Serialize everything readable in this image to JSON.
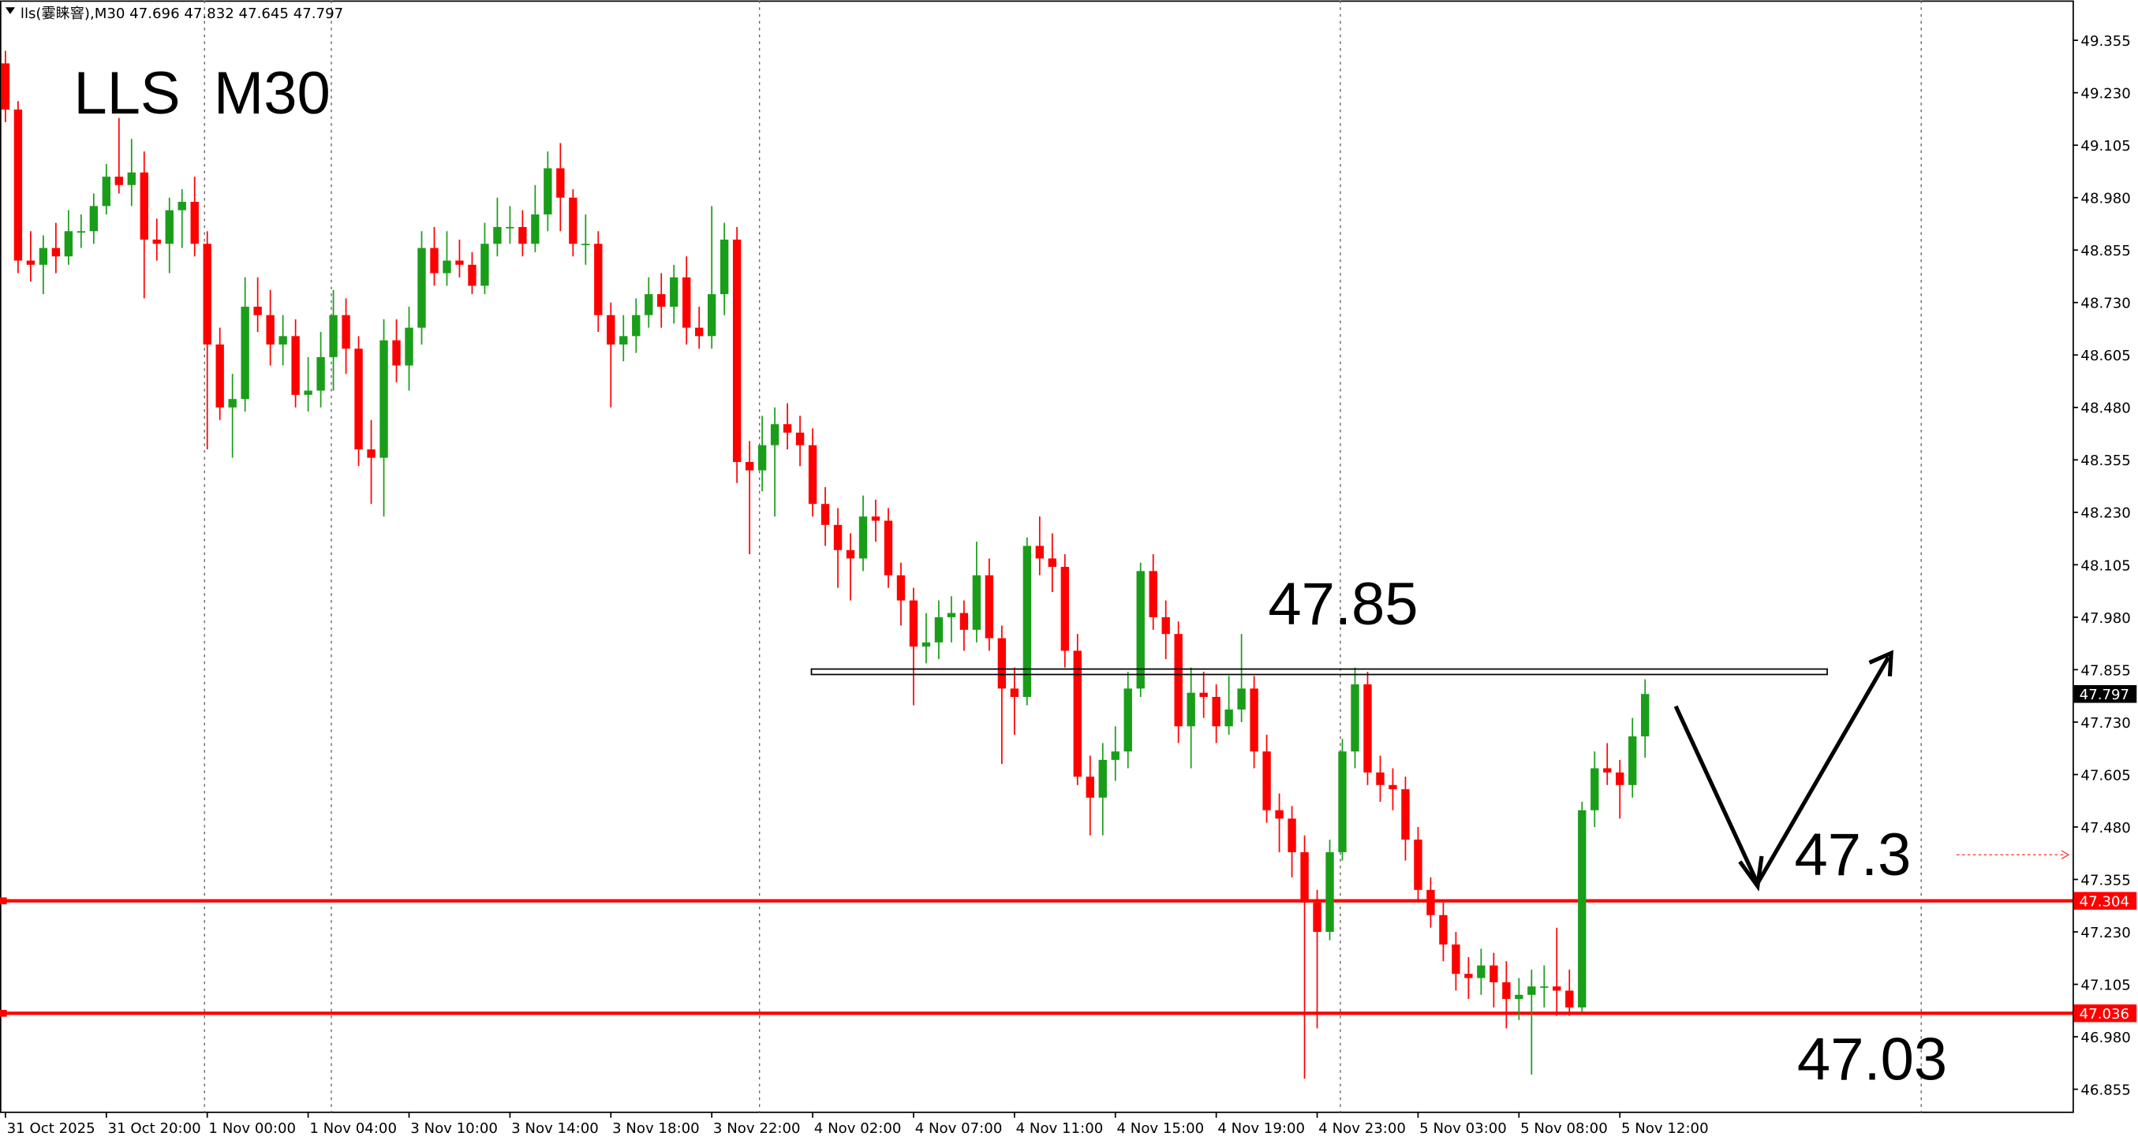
{
  "chart_data": {
    "type": "candlestick",
    "header": "lls(霎睐窨),M30  47.696 47.832 47.645 47.797",
    "title": "LLS  M30",
    "up_color": "#1a9e1a",
    "down_color": "#ff0000",
    "ylim": [
      46.8,
      49.45
    ],
    "yticks": [
      49.355,
      {
        "value": 49.23,
        "label": "49.230"
      },
      49.105,
      {
        "value": 48.98,
        "label": "48.980"
      },
      48.855,
      {
        "value": 48.73,
        "label": "48.730"
      },
      48.605,
      {
        "value": 48.48,
        "label": "48.480"
      },
      48.355,
      {
        "value": 48.23,
        "label": "48.230"
      },
      48.105,
      {
        "value": 47.98,
        "label": "47.980"
      },
      47.855,
      {
        "value": 47.73,
        "label": "47.730"
      },
      47.605,
      {
        "value": 47.48,
        "label": "47.480"
      },
      47.355,
      {
        "value": 47.23,
        "label": "47.230"
      },
      47.105,
      {
        "value": 46.98,
        "label": "46.980"
      },
      46.855
    ],
    "xticks": [
      {
        "value": 0,
        "label": "31 Oct 2025"
      },
      {
        "value": 8,
        "label": "31 Oct 20:00"
      },
      {
        "value": 16,
        "label": "1 Nov 00:00"
      },
      {
        "value": 24,
        "label": "1 Nov 04:00"
      },
      {
        "value": 32,
        "label": "3 Nov 10:00"
      },
      {
        "value": 40,
        "label": "3 Nov 14:00"
      },
      {
        "value": 48,
        "label": "3 Nov 18:00"
      },
      {
        "value": 56,
        "label": "3 Nov 22:00"
      },
      {
        "value": 64,
        "label": "4 Nov 02:00"
      },
      {
        "value": 72,
        "label": "4 Nov 07:00"
      },
      {
        "value": 80,
        "label": "4 Nov 11:00"
      },
      {
        "value": 88,
        "label": "4 Nov 15:00"
      },
      {
        "value": 96,
        "label": "4 Nov 19:00"
      },
      {
        "value": 104,
        "label": "4 Nov 23:00"
      },
      {
        "value": 112,
        "label": "5 Nov 03:00"
      },
      {
        "value": 120,
        "label": "5 Nov 08:00"
      },
      {
        "value": 128,
        "label": "5 Nov 12:00"
      }
    ],
    "price_lines": [
      {
        "value": 47.304,
        "color": "#ff0000"
      },
      {
        "value": 47.036,
        "color": "#ff0000"
      }
    ],
    "annotations": [
      47.85,
      47.3,
      47.03
    ],
    "ohlc": [
      [
        49.3,
        49.33,
        49.16,
        49.19
      ],
      [
        49.19,
        49.21,
        48.8,
        48.83
      ],
      [
        48.83,
        48.9,
        48.78,
        48.82
      ],
      [
        48.82,
        48.89,
        48.75,
        48.86
      ],
      [
        48.86,
        48.92,
        48.8,
        48.84
      ],
      [
        48.84,
        48.95,
        48.82,
        48.9
      ],
      [
        48.9,
        48.94,
        48.86,
        48.9
      ],
      [
        48.9,
        48.99,
        48.87,
        48.96
      ],
      [
        48.96,
        49.06,
        48.94,
        49.03
      ],
      [
        49.03,
        49.17,
        48.99,
        49.01
      ],
      [
        49.01,
        49.12,
        48.96,
        49.04
      ],
      [
        49.04,
        49.09,
        48.74,
        48.88
      ],
      [
        48.88,
        48.93,
        48.83,
        48.87
      ],
      [
        48.87,
        48.98,
        48.8,
        48.95
      ],
      [
        48.95,
        49.0,
        48.86,
        48.97
      ],
      [
        48.97,
        49.03,
        48.84,
        48.87
      ],
      [
        48.87,
        48.9,
        48.38,
        48.63
      ],
      [
        48.63,
        48.67,
        48.45,
        48.48
      ],
      [
        48.48,
        48.56,
        48.36,
        48.5
      ],
      [
        48.5,
        48.79,
        48.47,
        48.72
      ],
      [
        48.72,
        48.79,
        48.66,
        48.7
      ],
      [
        48.7,
        48.76,
        48.58,
        48.63
      ],
      [
        48.63,
        48.7,
        48.58,
        48.65
      ],
      [
        48.65,
        48.69,
        48.48,
        48.51
      ],
      [
        48.51,
        48.6,
        48.47,
        48.52
      ],
      [
        48.52,
        48.66,
        48.48,
        48.6
      ],
      [
        48.6,
        48.76,
        48.52,
        48.7
      ],
      [
        48.7,
        48.74,
        48.56,
        48.62
      ],
      [
        48.62,
        48.65,
        48.34,
        48.38
      ],
      [
        48.38,
        48.45,
        48.25,
        48.36
      ],
      [
        48.36,
        48.69,
        48.22,
        48.64
      ],
      [
        48.64,
        48.69,
        48.54,
        48.58
      ],
      [
        48.58,
        48.72,
        48.52,
        48.67
      ],
      [
        48.67,
        48.9,
        48.63,
        48.86
      ],
      [
        48.86,
        48.91,
        48.77,
        48.8
      ],
      [
        48.8,
        48.9,
        48.77,
        48.83
      ],
      [
        48.83,
        48.88,
        48.79,
        48.82
      ],
      [
        48.82,
        48.85,
        48.75,
        48.77
      ],
      [
        48.77,
        48.92,
        48.75,
        48.87
      ],
      [
        48.87,
        48.98,
        48.84,
        48.91
      ],
      [
        48.91,
        48.96,
        48.87,
        48.91
      ],
      [
        48.91,
        48.95,
        48.84,
        48.87
      ],
      [
        48.87,
        49.01,
        48.85,
        48.94
      ],
      [
        48.94,
        49.09,
        48.9,
        49.05
      ],
      [
        49.05,
        49.11,
        48.9,
        48.98
      ],
      [
        48.98,
        49.0,
        48.84,
        48.87
      ],
      [
        48.87,
        48.94,
        48.82,
        48.87
      ],
      [
        48.87,
        48.9,
        48.66,
        48.7
      ],
      [
        48.7,
        48.73,
        48.48,
        48.63
      ],
      [
        48.63,
        48.7,
        48.59,
        48.65
      ],
      [
        48.65,
        48.74,
        48.61,
        48.7
      ],
      [
        48.7,
        48.79,
        48.67,
        48.75
      ],
      [
        48.75,
        48.8,
        48.67,
        48.72
      ],
      [
        48.72,
        48.82,
        48.68,
        48.79
      ],
      [
        48.79,
        48.84,
        48.63,
        48.67
      ],
      [
        48.67,
        48.72,
        48.62,
        48.65
      ],
      [
        48.65,
        48.96,
        48.62,
        48.75
      ],
      [
        48.75,
        48.92,
        48.7,
        48.88
      ],
      [
        48.88,
        48.91,
        48.3,
        48.35
      ],
      [
        48.35,
        48.4,
        48.13,
        48.33
      ],
      [
        48.33,
        48.46,
        48.28,
        48.39
      ],
      [
        48.39,
        48.48,
        48.22,
        48.44
      ],
      [
        48.44,
        48.49,
        48.38,
        48.42
      ],
      [
        48.42,
        48.46,
        48.34,
        48.39
      ],
      [
        48.39,
        48.43,
        48.22,
        48.25
      ],
      [
        48.25,
        48.29,
        48.15,
        48.2
      ],
      [
        48.2,
        48.24,
        48.05,
        48.14
      ],
      [
        48.14,
        48.18,
        48.02,
        48.12
      ],
      [
        48.12,
        48.27,
        48.09,
        48.22
      ],
      [
        48.22,
        48.26,
        48.16,
        48.21
      ],
      [
        48.21,
        48.24,
        48.05,
        48.08
      ],
      [
        48.08,
        48.11,
        47.96,
        48.02
      ],
      [
        48.02,
        48.05,
        47.77,
        47.91
      ],
      [
        47.91,
        47.99,
        47.87,
        47.92
      ],
      [
        47.92,
        48.02,
        47.88,
        47.98
      ],
      [
        47.98,
        48.03,
        47.92,
        47.99
      ],
      [
        47.99,
        48.02,
        47.9,
        47.95
      ],
      [
        47.95,
        48.16,
        47.92,
        48.08
      ],
      [
        48.08,
        48.12,
        47.9,
        47.93
      ],
      [
        47.93,
        47.96,
        47.63,
        47.81
      ],
      [
        47.81,
        47.86,
        47.7,
        47.79
      ],
      [
        47.79,
        48.17,
        47.77,
        48.15
      ],
      [
        48.15,
        48.22,
        48.08,
        48.12
      ],
      [
        48.12,
        48.18,
        48.04,
        48.1
      ],
      [
        48.1,
        48.13,
        47.86,
        47.9
      ],
      [
        47.9,
        47.94,
        47.58,
        47.6
      ],
      [
        47.6,
        47.65,
        47.46,
        47.55
      ],
      [
        47.55,
        47.68,
        47.46,
        47.64
      ],
      [
        47.64,
        47.72,
        47.59,
        47.66
      ],
      [
        47.66,
        47.85,
        47.62,
        47.81
      ],
      [
        47.81,
        48.11,
        47.79,
        48.09
      ],
      [
        48.09,
        48.13,
        47.95,
        47.98
      ],
      [
        47.98,
        48.02,
        47.88,
        47.94
      ],
      [
        47.94,
        47.97,
        47.68,
        47.72
      ],
      [
        47.72,
        47.86,
        47.62,
        47.8
      ],
      [
        47.8,
        47.85,
        47.74,
        47.79
      ],
      [
        47.79,
        47.82,
        47.68,
        47.72
      ],
      [
        47.72,
        47.84,
        47.7,
        47.76
      ],
      [
        47.76,
        47.94,
        47.73,
        47.81
      ],
      [
        47.81,
        47.84,
        47.62,
        47.66
      ],
      [
        47.66,
        47.7,
        47.49,
        47.52
      ],
      [
        47.52,
        47.56,
        47.42,
        47.5
      ],
      [
        47.5,
        47.53,
        47.36,
        47.42
      ],
      [
        47.42,
        47.46,
        46.88,
        47.3
      ],
      [
        47.3,
        47.33,
        47.0,
        47.23
      ],
      [
        47.23,
        47.45,
        47.21,
        47.42
      ],
      [
        47.42,
        47.69,
        47.4,
        47.66
      ],
      [
        47.66,
        47.86,
        47.62,
        47.82
      ],
      [
        47.82,
        47.85,
        47.58,
        47.61
      ],
      [
        47.61,
        47.65,
        47.54,
        47.58
      ],
      [
        47.58,
        47.62,
        47.52,
        47.57
      ],
      [
        47.57,
        47.6,
        47.4,
        47.45
      ],
      [
        47.45,
        47.48,
        47.3,
        47.33
      ],
      [
        47.33,
        47.36,
        47.24,
        47.27
      ],
      [
        47.27,
        47.3,
        47.16,
        47.2
      ],
      [
        47.2,
        47.23,
        47.09,
        47.13
      ],
      [
        47.13,
        47.17,
        47.07,
        47.12
      ],
      [
        47.12,
        47.19,
        47.08,
        47.15
      ],
      [
        47.15,
        47.18,
        47.05,
        47.11
      ],
      [
        47.11,
        47.16,
        47.0,
        47.07
      ],
      [
        47.07,
        47.12,
        47.02,
        47.08
      ],
      [
        47.08,
        47.14,
        46.89,
        47.1
      ],
      [
        47.1,
        47.15,
        47.05,
        47.1
      ],
      [
        47.1,
        47.24,
        47.03,
        47.09
      ],
      [
        47.09,
        47.14,
        47.03,
        47.05
      ],
      [
        47.05,
        47.54,
        47.04,
        47.52
      ],
      [
        47.52,
        47.66,
        47.48,
        47.62
      ],
      [
        47.62,
        47.68,
        47.58,
        47.61
      ],
      [
        47.61,
        47.64,
        47.5,
        47.58
      ],
      [
        47.58,
        47.74,
        47.55,
        47.696
      ],
      [
        47.696,
        47.832,
        47.645,
        47.797
      ]
    ]
  }
}
